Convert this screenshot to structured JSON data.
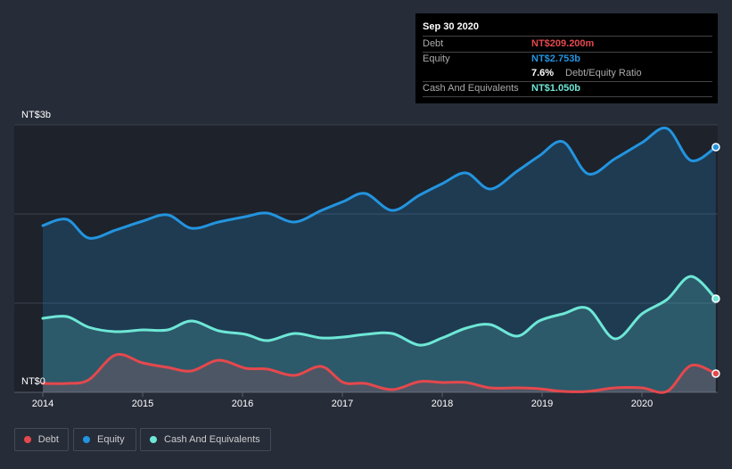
{
  "tooltip": {
    "date": "Sep 30 2020",
    "debt_label": "Debt",
    "debt_value": "NT$209.200m",
    "equity_label": "Equity",
    "equity_value": "NT$2.753b",
    "ratio_value": "7.6%",
    "ratio_label": "Debt/Equity Ratio",
    "cash_label": "Cash And Equivalents",
    "cash_value": "NT$1.050b"
  },
  "legend": [
    {
      "label": "Debt",
      "color": "#e5484d"
    },
    {
      "label": "Equity",
      "color": "#2394df"
    },
    {
      "label": "Cash And Equivalents",
      "color": "#6ee7d6"
    }
  ],
  "chart_data": {
    "type": "area",
    "y_unit": "NT$ billions",
    "ylim": [
      0,
      3
    ],
    "ytick_labels": [
      "NT$0",
      "NT$3b"
    ],
    "xlim": [
      2014,
      2020.75
    ],
    "xtick_labels": [
      "2014",
      "2015",
      "2016",
      "2017",
      "2018",
      "2019",
      "2020"
    ],
    "x": [
      2014.0,
      2014.24,
      2014.46,
      2014.73,
      2015.0,
      2015.25,
      2015.49,
      2015.76,
      2016.03,
      2016.25,
      2016.52,
      2016.79,
      2017.01,
      2017.23,
      2017.5,
      2017.77,
      2018.0,
      2018.24,
      2018.48,
      2018.75,
      2018.97,
      2019.21,
      2019.46,
      2019.73,
      2020.0,
      2020.25,
      2020.49,
      2020.74
    ],
    "series": [
      {
        "name": "Equity",
        "color": "#2394df",
        "values": [
          1.87,
          1.94,
          1.73,
          1.82,
          1.92,
          1.99,
          1.84,
          1.91,
          1.97,
          2.01,
          1.91,
          2.04,
          2.14,
          2.23,
          2.04,
          2.21,
          2.34,
          2.46,
          2.28,
          2.48,
          2.65,
          2.81,
          2.45,
          2.62,
          2.8,
          2.96,
          2.6,
          2.75
        ]
      },
      {
        "name": "Cash And Equivalents",
        "color": "#6ee7d6",
        "values": [
          0.83,
          0.85,
          0.73,
          0.68,
          0.7,
          0.7,
          0.8,
          0.69,
          0.65,
          0.58,
          0.66,
          0.61,
          0.62,
          0.65,
          0.66,
          0.53,
          0.61,
          0.72,
          0.76,
          0.63,
          0.8,
          0.88,
          0.94,
          0.6,
          0.88,
          1.04,
          1.3,
          1.05
        ]
      },
      {
        "name": "Debt",
        "color": "#e5484d",
        "values": [
          0.1,
          0.1,
          0.14,
          0.42,
          0.33,
          0.28,
          0.24,
          0.36,
          0.27,
          0.26,
          0.19,
          0.29,
          0.11,
          0.1,
          0.03,
          0.12,
          0.11,
          0.11,
          0.05,
          0.05,
          0.04,
          0.01,
          0.01,
          0.05,
          0.05,
          0.01,
          0.3,
          0.21
        ]
      }
    ]
  }
}
